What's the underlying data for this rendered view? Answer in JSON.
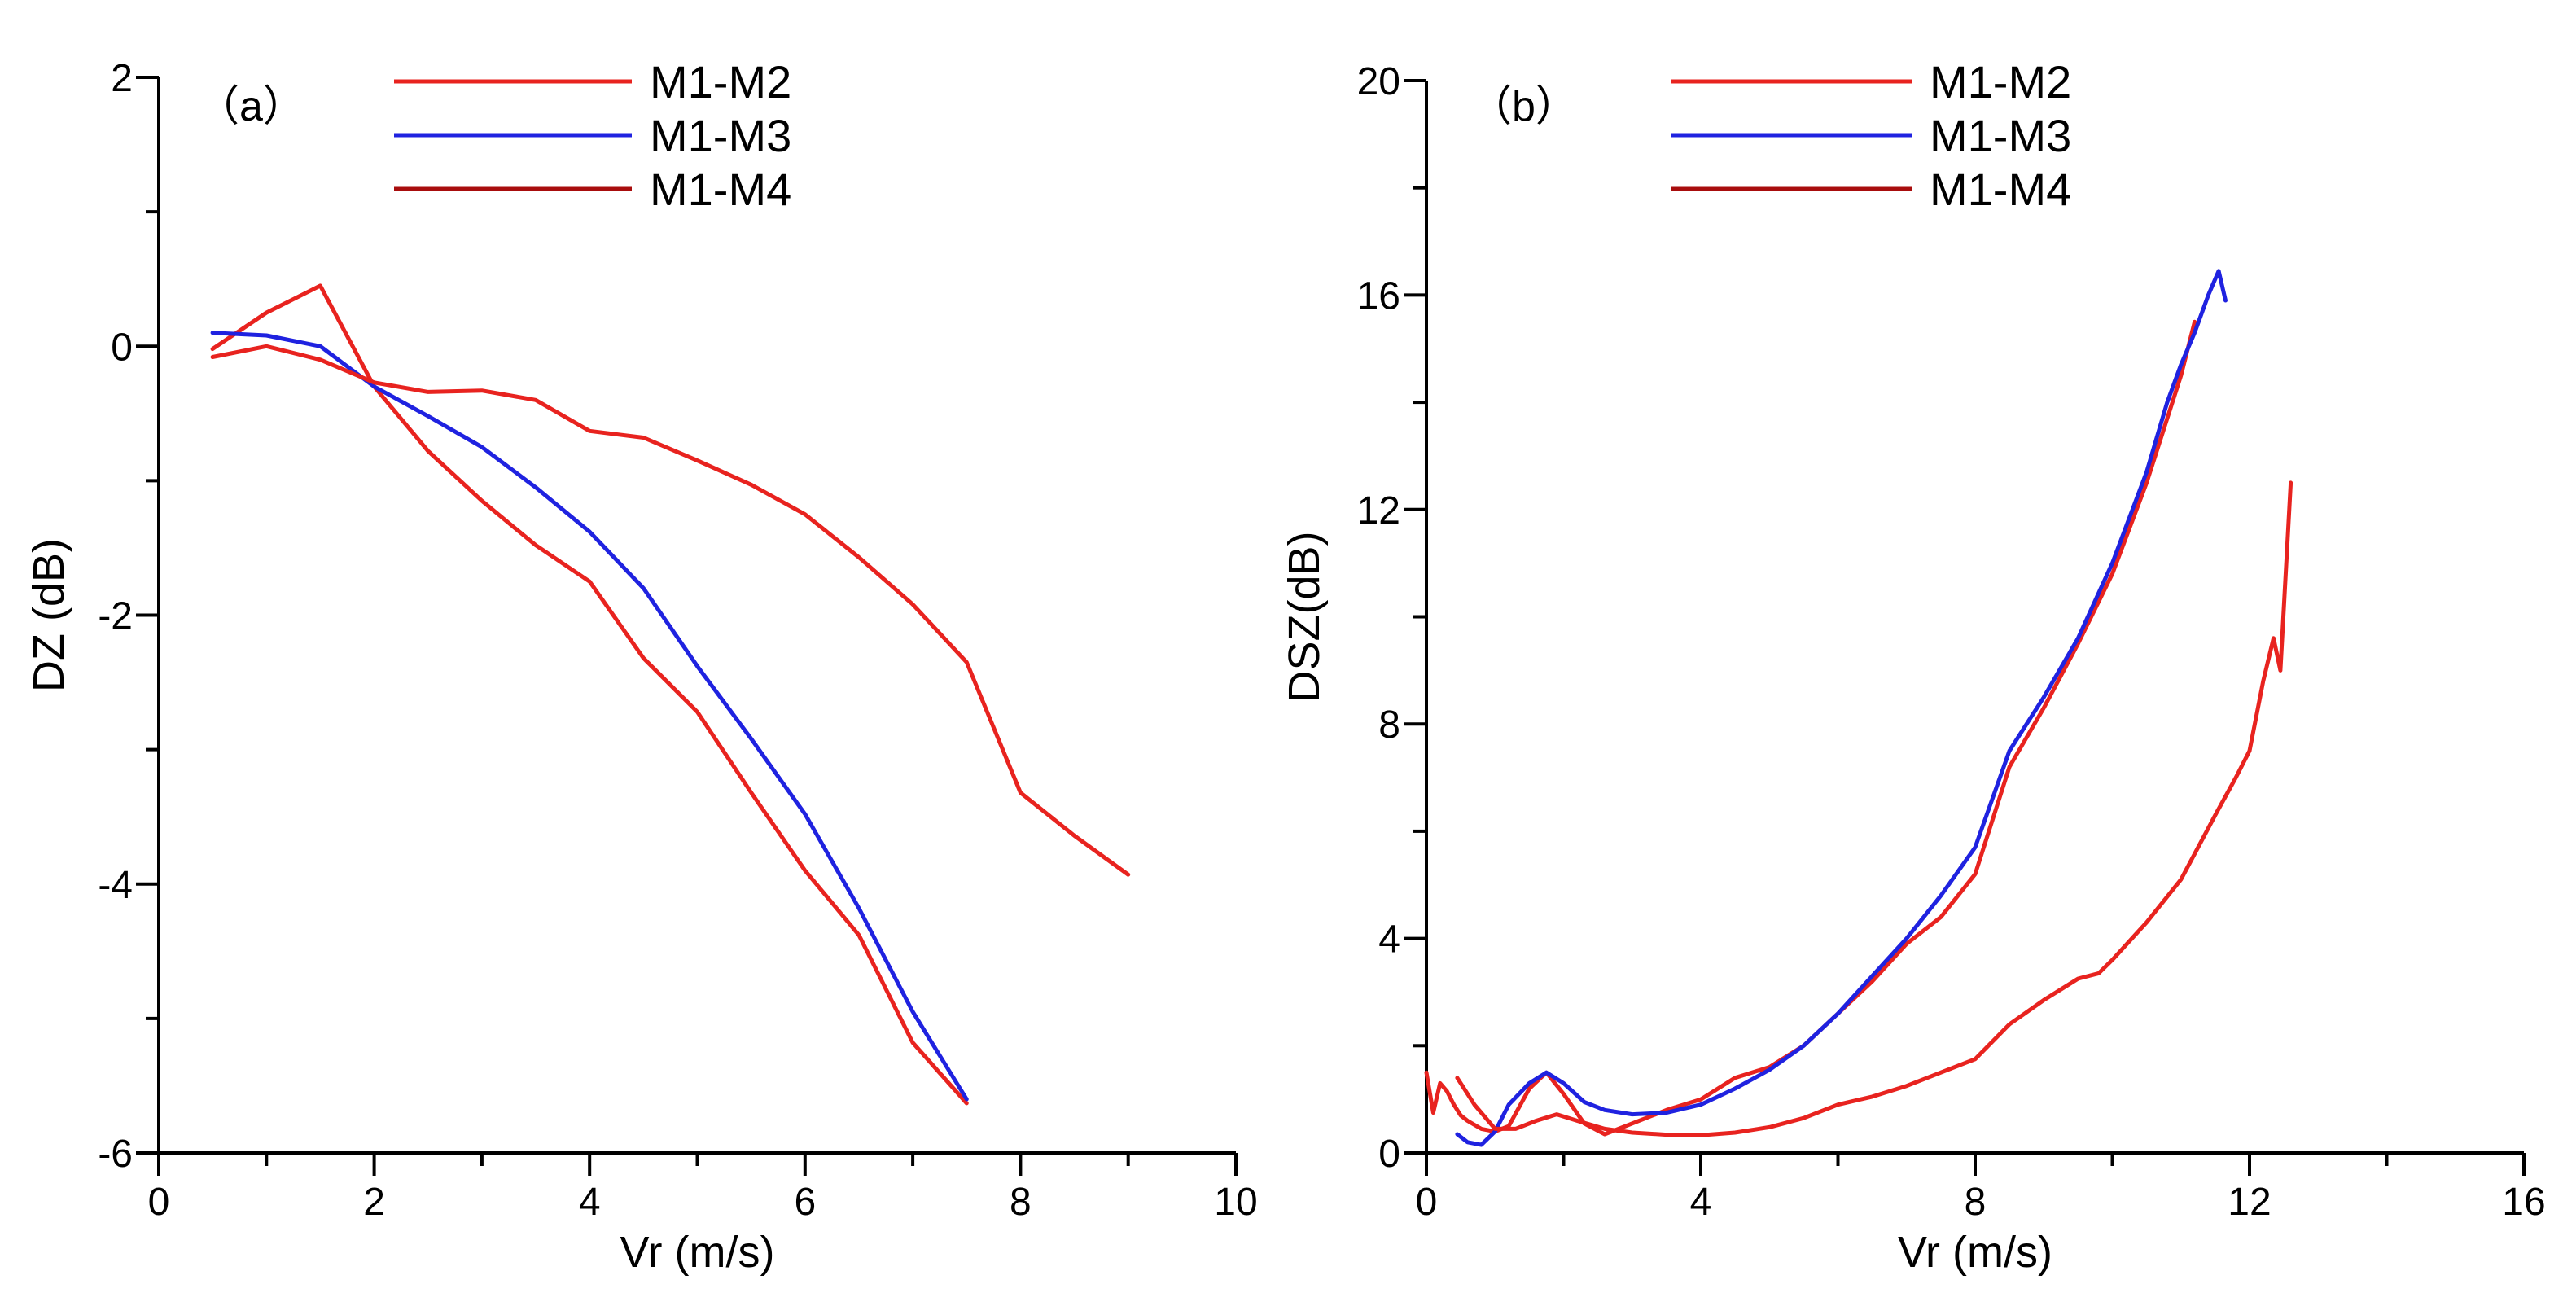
{
  "chart_data": [
    {
      "type": "line",
      "panel_label": "（a）",
      "xlabel": "Vr (m/s)",
      "ylabel": "DZ (dB)",
      "xlim": [
        0,
        10
      ],
      "ylim": [
        -6,
        2
      ],
      "xticks": [
        0,
        2,
        4,
        6,
        8,
        10
      ],
      "yticks": [
        -6,
        -4,
        -2,
        0,
        2
      ],
      "grid": false,
      "legend_position": "top-center",
      "series": [
        {
          "name": "M1-M2",
          "color": "#e8231f",
          "x": [
            0.5,
            1,
            1.5,
            2,
            2.5,
            3,
            3.5,
            4,
            4.5,
            5,
            5.5,
            6,
            6.5,
            7,
            7.5
          ],
          "y": [
            -0.02,
            0.25,
            0.45,
            -0.3,
            -0.78,
            -1.15,
            -1.48,
            -1.75,
            -2.32,
            -2.72,
            -3.32,
            -3.9,
            -4.38,
            -5.18,
            -5.63
          ]
        },
        {
          "name": "M1-M3",
          "color": "#1f22e0",
          "x": [
            0.5,
            1,
            1.5,
            2,
            2.5,
            3,
            3.5,
            4,
            4.5,
            5,
            5.5,
            6,
            6.5,
            7,
            7.5
          ],
          "y": [
            0.1,
            0.08,
            0.0,
            -0.3,
            -0.52,
            -0.75,
            -1.05,
            -1.38,
            -1.8,
            -2.38,
            -2.92,
            -3.48,
            -4.18,
            -4.95,
            -5.6
          ]
        },
        {
          "name": "M1-M4",
          "color": "#e8231f",
          "x": [
            0.5,
            1,
            1.5,
            2,
            2.5,
            3,
            3.5,
            4,
            4.5,
            5,
            5.5,
            6,
            6.5,
            7,
            7.5,
            8,
            8.5,
            9
          ],
          "y": [
            -0.08,
            0.0,
            -0.1,
            -0.27,
            -0.34,
            -0.33,
            -0.4,
            -0.63,
            -0.68,
            -0.85,
            -1.03,
            -1.25,
            -1.57,
            -1.92,
            -2.35,
            -3.32,
            -3.64,
            -3.93
          ]
        }
      ]
    },
    {
      "type": "line",
      "panel_label": "（b）",
      "xlabel": "Vr (m/s)",
      "ylabel": "DSZ(dB)",
      "xlim": [
        0,
        16
      ],
      "ylim": [
        0,
        20
      ],
      "xticks": [
        0,
        4,
        8,
        12,
        16
      ],
      "yticks": [
        0,
        4,
        8,
        12,
        16,
        20
      ],
      "grid": false,
      "legend_position": "top-center",
      "series": [
        {
          "name": "M1-M2",
          "color": "#e8231f",
          "x": [
            0.0,
            0.1,
            0.2,
            0.3,
            0.4,
            0.5,
            0.6,
            0.8,
            1.0,
            1.2,
            1.5,
            1.75,
            2.0,
            2.3,
            2.6,
            3.0,
            3.5,
            4.0,
            4.5,
            5.0,
            5.5,
            6.0,
            6.5,
            7.0,
            7.5,
            8.0,
            8.5,
            9.0,
            9.5,
            10.0,
            10.5,
            11.0,
            11.2
          ],
          "y": [
            1.5,
            0.75,
            1.3,
            1.15,
            0.9,
            0.7,
            0.6,
            0.45,
            0.4,
            0.5,
            1.2,
            1.5,
            1.1,
            0.55,
            0.35,
            0.55,
            0.8,
            1.0,
            1.4,
            1.6,
            2.0,
            2.6,
            3.2,
            3.9,
            4.4,
            5.2,
            7.2,
            8.3,
            9.5,
            10.8,
            12.5,
            14.5,
            15.5
          ]
        },
        {
          "name": "M1-M3",
          "color": "#1f22e0",
          "x": [
            0.45,
            0.6,
            0.8,
            1.0,
            1.2,
            1.5,
            1.75,
            2.0,
            2.3,
            2.6,
            3.0,
            3.5,
            4.0,
            4.5,
            5.0,
            5.5,
            6.0,
            6.5,
            7.0,
            7.5,
            8.0,
            8.5,
            9.0,
            9.5,
            10.0,
            10.5,
            10.8,
            11.0,
            11.2,
            11.4,
            11.55,
            11.65
          ],
          "y": [
            0.35,
            0.2,
            0.15,
            0.4,
            0.9,
            1.3,
            1.5,
            1.3,
            0.95,
            0.8,
            0.72,
            0.75,
            0.9,
            1.2,
            1.55,
            2.0,
            2.6,
            3.3,
            4.0,
            4.8,
            5.7,
            7.5,
            8.5,
            9.6,
            11.0,
            12.7,
            14.0,
            14.7,
            15.3,
            16.0,
            16.45,
            15.9
          ]
        },
        {
          "name": "M1-M4",
          "color": "#e8231f",
          "x": [
            0.45,
            0.7,
            1.0,
            1.3,
            1.6,
            1.9,
            2.2,
            2.6,
            3.0,
            3.5,
            4.0,
            4.5,
            5.0,
            5.5,
            6.0,
            6.5,
            7.0,
            7.5,
            8.0,
            8.5,
            9.0,
            9.5,
            9.8,
            10.0,
            10.5,
            11.0,
            11.5,
            11.8,
            12.0,
            12.2,
            12.35,
            12.45,
            12.6
          ],
          "y": [
            1.4,
            0.9,
            0.45,
            0.45,
            0.6,
            0.72,
            0.6,
            0.45,
            0.38,
            0.34,
            0.33,
            0.38,
            0.48,
            0.65,
            0.9,
            1.05,
            1.25,
            1.5,
            1.75,
            2.4,
            2.85,
            3.25,
            3.35,
            3.6,
            4.3,
            5.1,
            6.3,
            7.0,
            7.5,
            8.8,
            9.6,
            9.0,
            12.5
          ]
        }
      ]
    }
  ]
}
